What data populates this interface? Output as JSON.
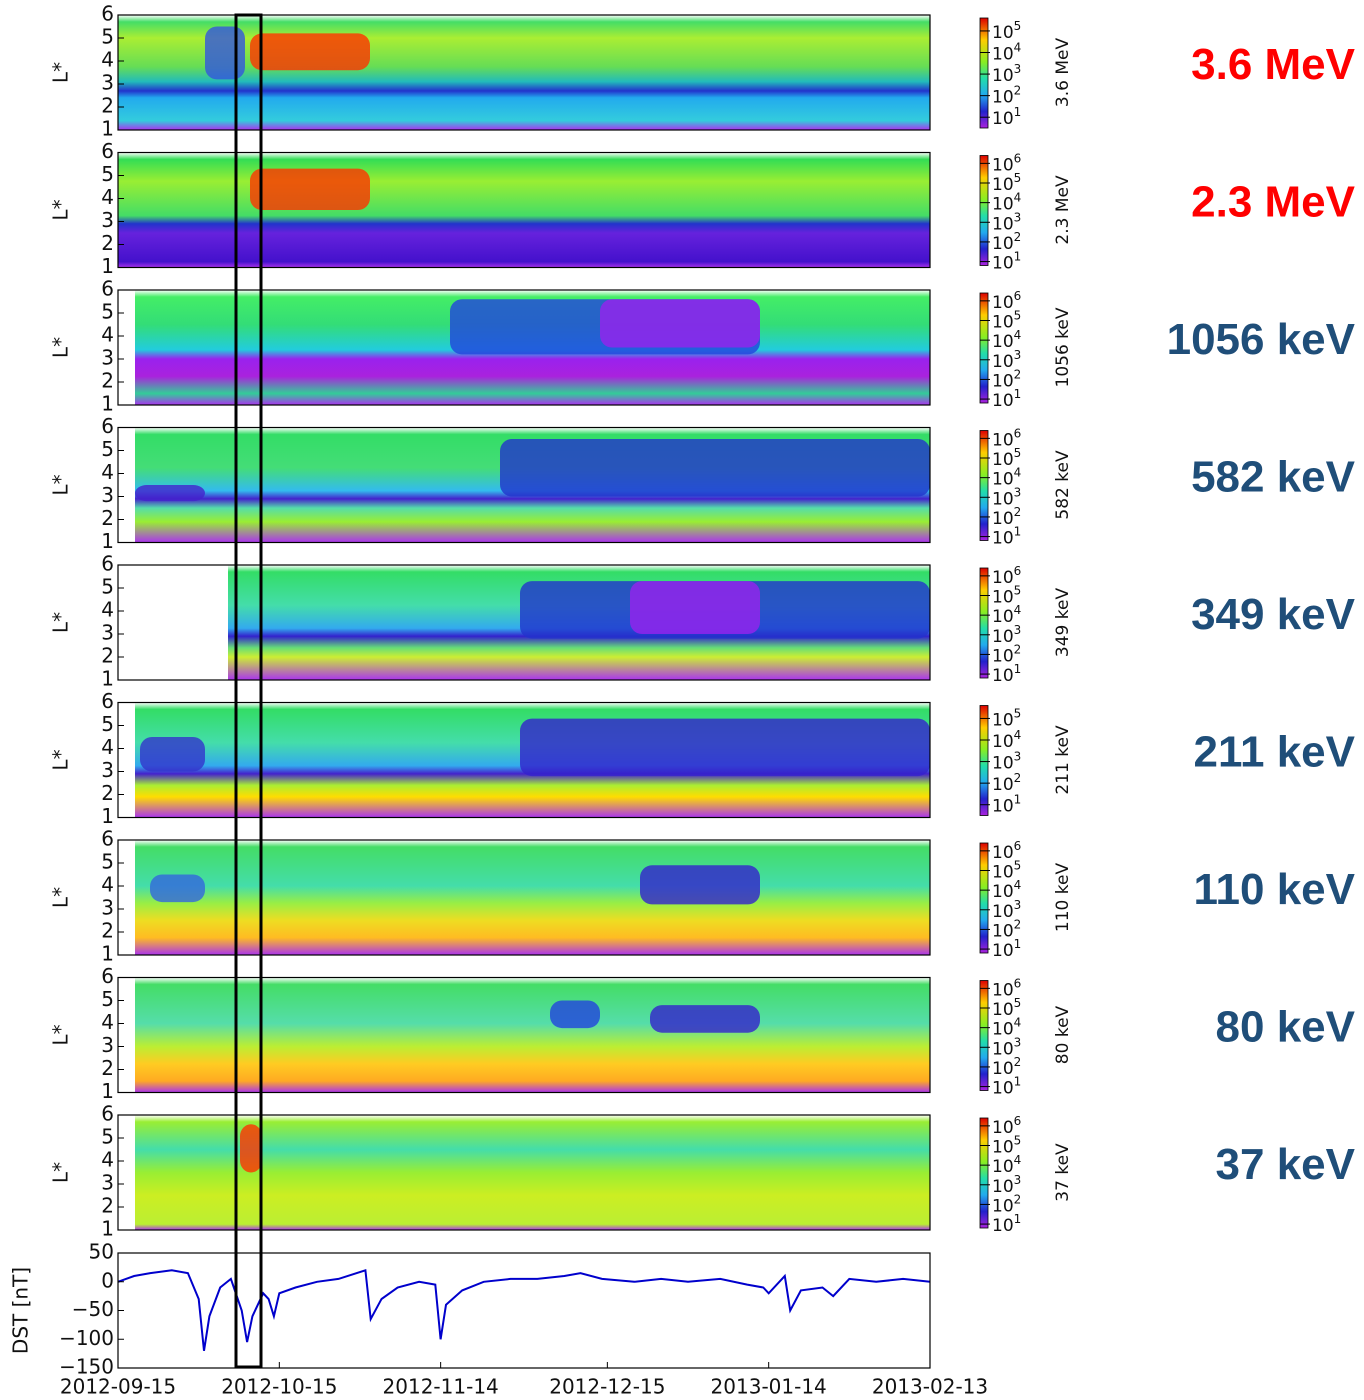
{
  "chart_data": [
    {
      "type": "spectrogram",
      "title": "3.6 MeV",
      "title_color": "#ff0000",
      "ylabel": "L*",
      "ylim": [
        1,
        6
      ],
      "yticks": [
        1,
        2,
        3,
        4,
        5,
        6
      ],
      "colorbar_label": "3.6 MeV",
      "colorbar_base": "10",
      "colorbar_ticks": [
        1,
        2,
        3,
        4,
        5
      ],
      "colorbar_lim": [
        0.5,
        5.6
      ]
    },
    {
      "type": "spectrogram",
      "title": "2.3 MeV",
      "title_color": "#ff0000",
      "ylabel": "L*",
      "ylim": [
        1,
        6
      ],
      "yticks": [
        1,
        2,
        3,
        4,
        5,
        6
      ],
      "colorbar_label": "2.3 MeV",
      "colorbar_base": "10",
      "colorbar_ticks": [
        1,
        2,
        3,
        4,
        5,
        6
      ],
      "colorbar_lim": [
        0.8,
        6.4
      ]
    },
    {
      "type": "spectrogram",
      "title": "1056 keV",
      "title_color": "#1f4e79",
      "ylabel": "L*",
      "ylim": [
        1,
        6
      ],
      "yticks": [
        1,
        2,
        3,
        4,
        5,
        6
      ],
      "colorbar_label": "1056 keV",
      "colorbar_base": "10",
      "colorbar_ticks": [
        1,
        2,
        3,
        4,
        5,
        6
      ],
      "colorbar_lim": [
        0.8,
        6.4
      ]
    },
    {
      "type": "spectrogram",
      "title": "582 keV",
      "title_color": "#1f4e79",
      "ylabel": "L*",
      "ylim": [
        1,
        6
      ],
      "yticks": [
        1,
        2,
        3,
        4,
        5,
        6
      ],
      "colorbar_label": "582 keV",
      "colorbar_base": "10",
      "colorbar_ticks": [
        1,
        2,
        3,
        4,
        5,
        6
      ],
      "colorbar_lim": [
        0.8,
        6.4
      ]
    },
    {
      "type": "spectrogram",
      "title": "349 keV",
      "title_color": "#1f4e79",
      "ylabel": "L*",
      "ylim": [
        1,
        6
      ],
      "yticks": [
        1,
        2,
        3,
        4,
        5,
        6
      ],
      "colorbar_label": "349 keV",
      "colorbar_base": "10",
      "colorbar_ticks": [
        1,
        2,
        3,
        4,
        5,
        6
      ],
      "colorbar_lim": [
        0.8,
        6.4
      ]
    },
    {
      "type": "spectrogram",
      "title": "211 keV",
      "title_color": "#1f4e79",
      "ylabel": "L*",
      "ylim": [
        1,
        6
      ],
      "yticks": [
        1,
        2,
        3,
        4,
        5,
        6
      ],
      "colorbar_label": "211 keV",
      "colorbar_base": "10",
      "colorbar_ticks": [
        1,
        2,
        3,
        4,
        5
      ],
      "colorbar_lim": [
        0.5,
        5.6
      ]
    },
    {
      "type": "spectrogram",
      "title": "110 keV",
      "title_color": "#1f4e79",
      "ylabel": "L*",
      "ylim": [
        1,
        6
      ],
      "yticks": [
        1,
        2,
        3,
        4,
        5,
        6
      ],
      "colorbar_label": "110 keV",
      "colorbar_base": "10",
      "colorbar_ticks": [
        1,
        2,
        3,
        4,
        5,
        6
      ],
      "colorbar_lim": [
        0.8,
        6.4
      ]
    },
    {
      "type": "spectrogram",
      "title": "80 keV",
      "title_color": "#1f4e79",
      "ylabel": "L*",
      "ylim": [
        1,
        6
      ],
      "yticks": [
        1,
        2,
        3,
        4,
        5,
        6
      ],
      "colorbar_label": "80 keV",
      "colorbar_base": "10",
      "colorbar_ticks": [
        1,
        2,
        3,
        4,
        5,
        6
      ],
      "colorbar_lim": [
        0.8,
        6.4
      ]
    },
    {
      "type": "spectrogram",
      "title": "37 keV",
      "title_color": "#1f4e79",
      "ylabel": "L*",
      "ylim": [
        1,
        6
      ],
      "yticks": [
        1,
        2,
        3,
        4,
        5,
        6
      ],
      "colorbar_label": "37 keV",
      "colorbar_base": "10",
      "colorbar_ticks": [
        1,
        2,
        3,
        4,
        5,
        6
      ],
      "colorbar_lim": [
        0.8,
        6.4
      ]
    },
    {
      "type": "line",
      "ylabel": "DST [nT]",
      "ylim": [
        -150,
        50
      ],
      "yticks": [
        50,
        0,
        {
          "value": -50,
          "label": "−50"
        },
        {
          "value": -100,
          "label": "−100"
        },
        {
          "value": -150,
          "label": "−150"
        }
      ],
      "xlim": [
        "2012-09-15",
        "2013-02-13"
      ],
      "xticks": [
        "2012-09-15",
        "2012-10-15",
        "2012-11-14",
        "2012-12-15",
        "2013-01-14",
        "2013-02-13"
      ],
      "x": [
        "2012-09-15",
        "2012-09-18",
        "2012-09-21",
        "2012-09-25",
        "2012-09-28",
        "2012-09-30",
        "2012-10-01",
        "2012-10-02",
        "2012-10-04",
        "2012-10-06",
        "2012-10-08",
        "2012-10-09",
        "2012-10-10",
        "2012-10-12",
        "2012-10-13",
        "2012-10-14",
        "2012-10-15",
        "2012-10-18",
        "2012-10-22",
        "2012-10-26",
        "2012-10-31",
        "2012-11-01",
        "2012-11-03",
        "2012-11-06",
        "2012-11-10",
        "2012-11-13",
        "2012-11-14",
        "2012-11-15",
        "2012-11-18",
        "2012-11-22",
        "2012-11-27",
        "2012-12-02",
        "2012-12-07",
        "2012-12-10",
        "2012-12-14",
        "2012-12-20",
        "2012-12-25",
        "2012-12-30",
        "2013-01-05",
        "2013-01-10",
        "2013-01-13",
        "2013-01-14",
        "2013-01-17",
        "2013-01-18",
        "2013-01-20",
        "2013-01-24",
        "2013-01-26",
        "2013-01-29",
        "2013-02-03",
        "2013-02-08",
        "2013-02-13"
      ],
      "series": [
        {
          "color": "#0000cc",
          "values": [
            0,
            10,
            15,
            20,
            15,
            -30,
            -120,
            -60,
            -10,
            5,
            -50,
            -105,
            -60,
            -20,
            -30,
            -60,
            -20,
            -10,
            0,
            5,
            20,
            -65,
            -30,
            -10,
            0,
            -5,
            -100,
            -40,
            -15,
            0,
            5,
            5,
            10,
            15,
            5,
            0,
            5,
            0,
            5,
            -5,
            -10,
            -20,
            10,
            -50,
            -15,
            -10,
            -25,
            5,
            0,
            5,
            0
          ]
        }
      ]
    }
  ]
}
